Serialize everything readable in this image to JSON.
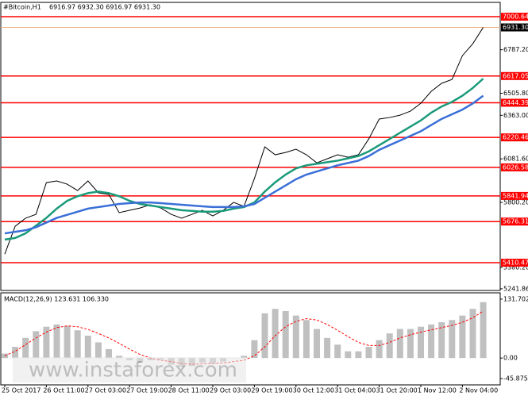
{
  "header": {
    "symbol": "#Bitcoin,H1",
    "quote": "6916.97 6932.30 6916.97 6931.30"
  },
  "watermark": "www.instaforex.com",
  "chart_data": [
    {
      "type": "line",
      "categories": [
        "25 Oct 2017",
        null,
        null,
        null,
        "26 Oct 11:00",
        null,
        null,
        null,
        "27 Oct 03:00",
        null,
        null,
        null,
        "27 Oct 19:00",
        null,
        null,
        null,
        "28 Oct 11:00",
        null,
        null,
        null,
        "29 Oct 03:00",
        null,
        null,
        null,
        "29 Oct 19:00",
        null,
        null,
        null,
        "30 Oct 12:00",
        null,
        null,
        null,
        "31 Oct 04:00",
        null,
        null,
        null,
        "31 Oct 20:00",
        null,
        null,
        null,
        "1 Nov 12:00",
        null,
        null,
        null,
        "2 Nov 04:00",
        null,
        null
      ],
      "series": [
        {
          "color": "#000000",
          "values": [
            5466,
            5646,
            5698,
            5723,
            5928,
            5939,
            5918,
            5877,
            5939,
            5862,
            5852,
            5734,
            5749,
            5764,
            5785,
            5764,
            5723,
            5698,
            5723,
            5749,
            5713,
            5749,
            5800,
            5775,
            5954,
            6159,
            6108,
            6123,
            6144,
            6108,
            6056,
            6082,
            6108,
            6092,
            6108,
            6211,
            6339,
            6349,
            6364,
            6390,
            6441,
            6518,
            6570,
            6595,
            6749,
            6826,
            6931.3
          ]
        },
        {
          "color": "#1a9a7a",
          "values": [
            5560,
            5570,
            5600,
            5650,
            5700,
            5760,
            5810,
            5840,
            5860,
            5870,
            5860,
            5840,
            5810,
            5790,
            5780,
            5770,
            5760,
            5750,
            5745,
            5740,
            5740,
            5745,
            5760,
            5770,
            5800,
            5870,
            5930,
            5980,
            6020,
            6040,
            6050,
            6060,
            6070,
            6085,
            6100,
            6130,
            6170,
            6210,
            6250,
            6290,
            6330,
            6380,
            6420,
            6450,
            6490,
            6540,
            6600
          ]
        },
        {
          "color": "#3a6fd8",
          "values": [
            5600,
            5610,
            5620,
            5640,
            5670,
            5700,
            5720,
            5740,
            5760,
            5770,
            5780,
            5790,
            5795,
            5800,
            5800,
            5795,
            5790,
            5785,
            5780,
            5775,
            5770,
            5770,
            5770,
            5775,
            5790,
            5830,
            5870,
            5910,
            5950,
            5980,
            6000,
            6020,
            6040,
            6055,
            6070,
            6100,
            6140,
            6170,
            6200,
            6230,
            6260,
            6300,
            6340,
            6370,
            6400,
            6440,
            6490
          ]
        }
      ],
      "ylim": [
        5231,
        7088
      ],
      "yticks": [
        {
          "value": 6787.2,
          "label": "6787.20"
        },
        {
          "value": 6505.8,
          "label": "6505.80"
        },
        {
          "value": 6363,
          "label": "6363.00"
        },
        {
          "value": 6081.6,
          "label": "6081.60"
        },
        {
          "value": 5800.2,
          "label": "5800.20"
        },
        {
          "value": 5380.2,
          "label": "5380.20"
        },
        5241.86
      ],
      "levels": [
        7000.64,
        6617.05,
        6444.39,
        6220.46,
        6026.58,
        5841.94,
        5676.31,
        5410.47
      ],
      "level_labels": [
        "7000.64",
        "6617.05",
        "6444.39",
        "6220.46",
        "6026.58",
        "5841.94",
        "5676.31",
        "5410.47"
      ],
      "level_color": "#ff0000",
      "last": 6931.3,
      "last_label": "6931.30",
      "last_color": "#f0b080"
    },
    {
      "type": "bar",
      "title": "MACD(12,26,9) 123.631 106.330",
      "values": [
        10,
        25,
        45,
        60,
        70,
        75,
        72,
        62,
        50,
        35,
        20,
        5,
        -5,
        -10,
        -5,
        -3,
        -15,
        -20,
        -18,
        -10,
        -12,
        -8,
        0,
        5,
        40,
        100,
        110,
        105,
        95,
        85,
        65,
        45,
        30,
        15,
        15,
        25,
        40,
        55,
        65,
        65,
        70,
        75,
        80,
        85,
        95,
        110,
        125
      ],
      "color": "#c0c0c0",
      "signal": {
        "color": "#ff0000",
        "values": [
          5,
          15,
          30,
          45,
          58,
          68,
          72,
          70,
          64,
          55,
          45,
          33,
          20,
          8,
          0,
          -5,
          -8,
          -12,
          -14,
          -13,
          -12,
          -11,
          -8,
          -5,
          5,
          25,
          50,
          70,
          82,
          88,
          85,
          75,
          62,
          48,
          35,
          28,
          28,
          35,
          45,
          52,
          58,
          63,
          68,
          73,
          80,
          90,
          105
        ]
      },
      "ylim": [
        -60,
        144
      ],
      "yticks": [
        131.702,
        {
          "value": 0,
          "label": "0.00"
        },
        -45.875
      ]
    }
  ]
}
